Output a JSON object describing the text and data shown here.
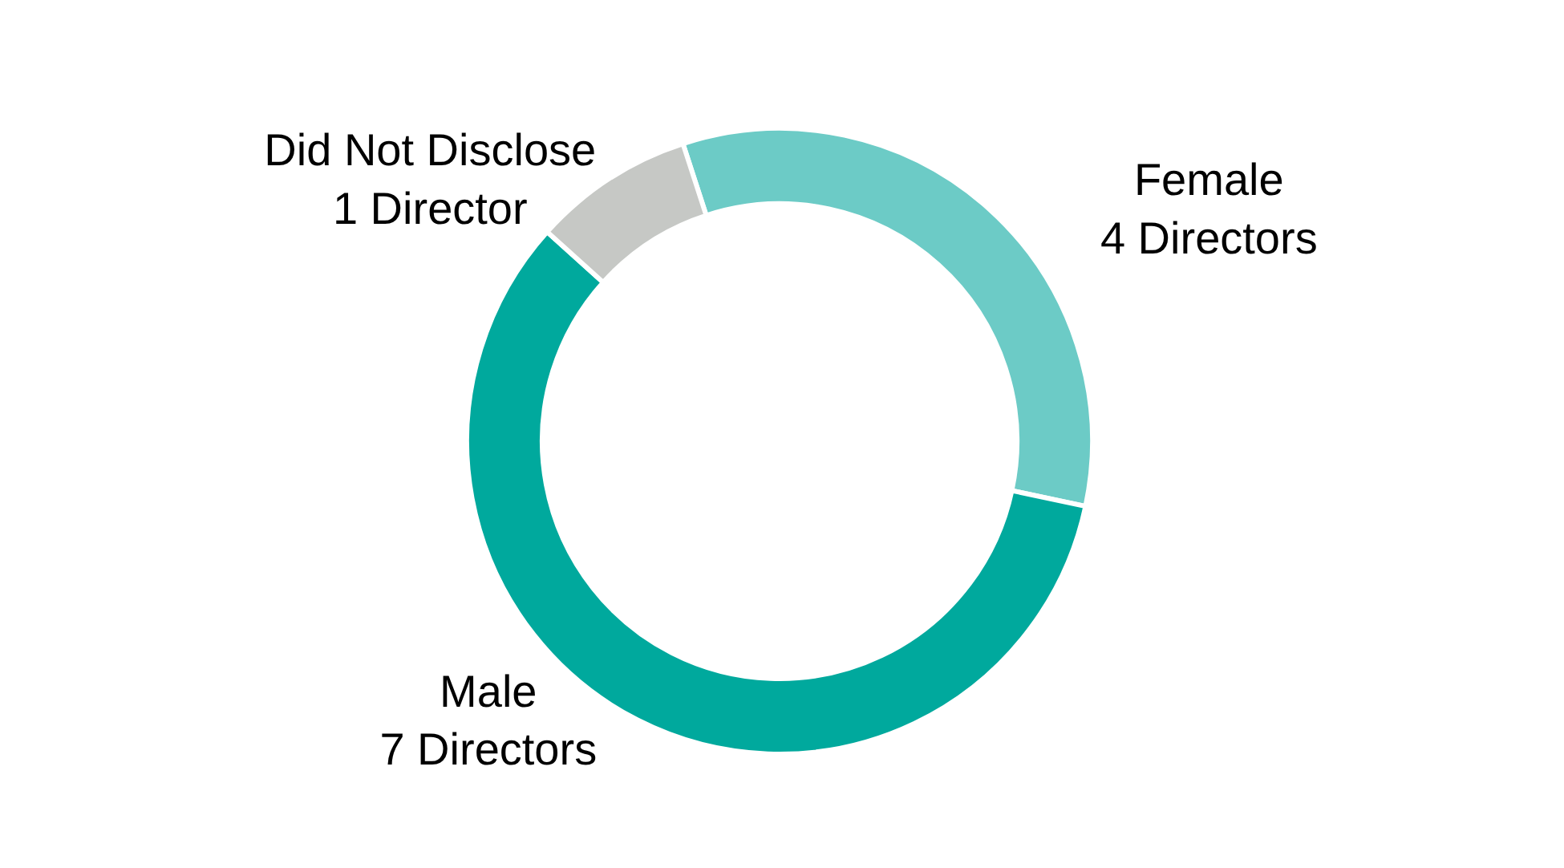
{
  "chart_data": {
    "type": "donut",
    "categories": [
      "Female",
      "Male",
      "Did Not Disclose"
    ],
    "values": [
      4,
      7,
      1
    ],
    "colors": [
      "#6ccbc6",
      "#00a99d",
      "#c6c8c5"
    ],
    "value_labels": [
      "4 Directors",
      "7 Directors",
      "1 Director"
    ],
    "legend": false
  }
}
